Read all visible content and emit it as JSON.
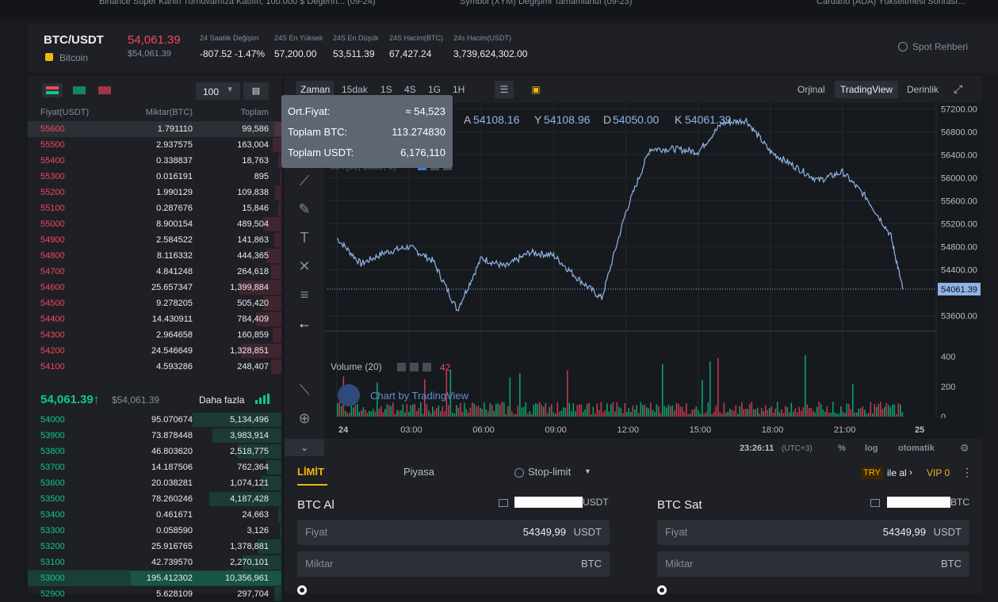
{
  "top_strip": {
    "items": [
      "Binance Süper Kahin Turnuvamıza Katılın, 100.000 $ Değerin... (09-24)",
      "Symbol (XYM) Değişimi Tamamlandı (09-23)",
      "Cardano (ADA) Yükseltmesi Sonrası..."
    ]
  },
  "ticker": {
    "pair": "BTC/USDT",
    "coin_name": "Bitcoin",
    "last_price": "54,061.39",
    "last_price_usd": "$54,061.39",
    "stats": [
      {
        "label": "24 Saatlik Değişim",
        "value": "-807.52 -1.47%",
        "color": "#f6465d"
      },
      {
        "label": "24S En Yüksek",
        "value": "57,200.00",
        "color": "#eaecef"
      },
      {
        "label": "24S En Düşük",
        "value": "53,511.39",
        "color": "#eaecef"
      },
      {
        "label": "24S Hacim(BTC)",
        "value": "67,427.24",
        "color": "#eaecef"
      },
      {
        "label": "24s Hacim(USDT)",
        "value": "3,739,624,302.00",
        "color": "#eaecef"
      }
    ],
    "guide": "Spot Rehberi"
  },
  "orderbook": {
    "depth": "100",
    "headers": {
      "price": "Fiyat(USDT)",
      "amount": "Miktar(BTC)",
      "total": "Toplam"
    },
    "asks": [
      {
        "p": "55600",
        "a": "1.791110",
        "t": "99,586",
        "f": 0.05
      },
      {
        "p": "55500",
        "a": "2.937575",
        "t": "163,004",
        "f": 0.06
      },
      {
        "p": "55400",
        "a": "0.338837",
        "t": "18,763",
        "f": 0.02
      },
      {
        "p": "55300",
        "a": "0.016191",
        "t": "895",
        "f": 0.01
      },
      {
        "p": "55200",
        "a": "1.990129",
        "t": "109,838",
        "f": 0.04
      },
      {
        "p": "55100",
        "a": "0.287676",
        "t": "15,846",
        "f": 0.02
      },
      {
        "p": "55000",
        "a": "8.900154",
        "t": "489,504",
        "f": 0.12
      },
      {
        "p": "54900",
        "a": "2.584522",
        "t": "141,863",
        "f": 0.05
      },
      {
        "p": "54800",
        "a": "8.116332",
        "t": "444,365",
        "f": 0.1
      },
      {
        "p": "54700",
        "a": "4.841248",
        "t": "264,618",
        "f": 0.07
      },
      {
        "p": "54600",
        "a": "25.657347",
        "t": "1,399,884",
        "f": 0.28
      },
      {
        "p": "54500",
        "a": "9.278205",
        "t": "505,420",
        "f": 0.12
      },
      {
        "p": "54400",
        "a": "14.430911",
        "t": "784,409",
        "f": 0.17
      },
      {
        "p": "54300",
        "a": "2.964658",
        "t": "160,859",
        "f": 0.06
      },
      {
        "p": "54200",
        "a": "24.546649",
        "t": "1,328,851",
        "f": 0.27
      },
      {
        "p": "54100",
        "a": "4.593286",
        "t": "248,407",
        "f": 0.07
      }
    ],
    "mid_price": "54,061.39",
    "mid_arrow": "↑",
    "mid_usd": "$54,061.39",
    "more": "Daha fazla",
    "bids": [
      {
        "p": "54000",
        "a": "95.070674",
        "t": "5,134,496",
        "f": 0.59
      },
      {
        "p": "53900",
        "a": "73.878448",
        "t": "3,983,914",
        "f": 0.46
      },
      {
        "p": "53800",
        "a": "46.803620",
        "t": "2,518,775",
        "f": 0.29
      },
      {
        "p": "53700",
        "a": "14.187506",
        "t": "762,364",
        "f": 0.1
      },
      {
        "p": "53600",
        "a": "20.038281",
        "t": "1,074,121",
        "f": 0.13
      },
      {
        "p": "53500",
        "a": "78.260246",
        "t": "4,187,428",
        "f": 0.48
      },
      {
        "p": "53400",
        "a": "0.461671",
        "t": "24,663",
        "f": 0.02
      },
      {
        "p": "53300",
        "a": "0.058590",
        "t": "3,126",
        "f": 0.01
      },
      {
        "p": "53200",
        "a": "25.916765",
        "t": "1,378,881",
        "f": 0.16
      },
      {
        "p": "53100",
        "a": "42.739570",
        "t": "2,270,101",
        "f": 0.26
      },
      {
        "p": "53000",
        "a": "195.412302",
        "t": "10,356,961",
        "f": 1.0
      },
      {
        "p": "52900",
        "a": "5.628109",
        "t": "297,704",
        "f": 0.05
      }
    ]
  },
  "tooltip": {
    "rows": [
      {
        "label": "Ort.Fiyat:",
        "value": "≈ 54,523"
      },
      {
        "label": "Toplam BTC:",
        "value": "113.274830"
      },
      {
        "label": "Toplam USDT:",
        "value": "6,176,110"
      }
    ]
  },
  "chart_toolbar": {
    "intervals": [
      "Zaman",
      "15dak",
      "1S",
      "4S",
      "1G",
      "1H"
    ],
    "views": [
      "Orjinal",
      "TradingView",
      "Derinlik"
    ]
  },
  "chart": {
    "ohlc": {
      "a_label": "A",
      "a": "54108.16",
      "y_label": "Y",
      "y": "54108.96",
      "d_label": "D",
      "d": "54050.00",
      "k_label": "K",
      "k": "54061.39"
    },
    "ma_label": "MA (99, close, 0)",
    "volume_label": "Volume (20)",
    "volume_value": "42",
    "watermark": "Chart by TradingView",
    "last_price_label": "54061.39",
    "time": "23:26:11",
    "tz": "(UTC+3)",
    "bottom_opts": [
      "%",
      "log",
      "otomatik"
    ],
    "x_labels": [
      "24",
      "03:00",
      "06:00",
      "09:00",
      "12:00",
      "15:00",
      "18:00",
      "21:00",
      "25"
    ]
  },
  "chart_data": {
    "type": "line",
    "ylim": [
      53400,
      57300
    ],
    "yticks": [
      57200,
      56800,
      56400,
      56000,
      55600,
      55200,
      54800,
      54400,
      53600
    ],
    "volume_ticks": [
      400,
      200,
      0
    ],
    "x_hours": [
      0,
      1,
      2,
      3,
      4,
      5,
      6,
      7,
      8,
      9,
      10,
      11,
      12,
      13,
      14,
      15,
      16,
      17,
      18,
      19,
      20,
      21,
      22,
      23,
      23.5
    ],
    "y": [
      54950,
      54500,
      54700,
      54800,
      54550,
      53700,
      54600,
      54450,
      54700,
      54650,
      54250,
      53900,
      55400,
      56500,
      56500,
      56450,
      56950,
      57000,
      56450,
      56200,
      55950,
      56100,
      55650,
      55000,
      54061
    ]
  },
  "trade": {
    "tabs": [
      "LİMİT",
      "Piyasa",
      "Stop-limit"
    ],
    "try_badge": "TRY",
    "ile_al": "ile al",
    "vip": "VIP 0",
    "buy_title": "BTC Al",
    "sell_title": "BTC Sat",
    "buy_balance_unit": "USDT",
    "sell_balance_unit": "BTC",
    "price_label": "Fiyat",
    "amount_label": "Miktar",
    "buy_price": "54349,99",
    "sell_price": "54349,99",
    "quote": "USDT",
    "base": "BTC"
  }
}
